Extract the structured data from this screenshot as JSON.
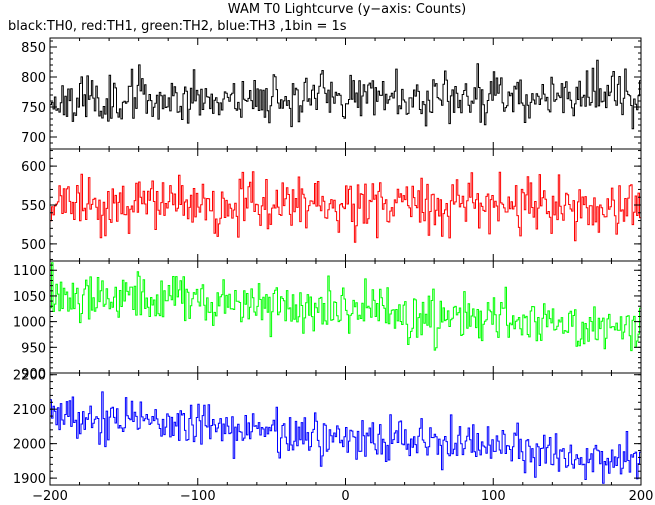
{
  "chart_data": {
    "type": "line",
    "title": "WAM T0 Lightcurve (y−axis: Counts)",
    "subtitle": "black:TH0, red:TH1, green:TH2, blue:TH3 ,1bin = 1s",
    "xlabel": "",
    "ylabel": "",
    "xlim": [
      -200,
      200
    ],
    "x_ticks": [
      -200,
      -100,
      0,
      100,
      200
    ],
    "x_tick_labels": [
      "−200",
      "−100",
      "0",
      "100",
      "200"
    ],
    "x_start": -200,
    "x_end": 200,
    "x_step": 1,
    "panels": [
      {
        "name": "TH0",
        "color": "#000000",
        "ylim": [
          680,
          865
        ],
        "y_ticks": [
          700,
          750,
          800,
          850
        ],
        "profile": [
          [
            -200,
            762
          ],
          [
            -100,
            765
          ],
          [
            0,
            768
          ],
          [
            100,
            768
          ],
          [
            200,
            772
          ]
        ],
        "noise": 27,
        "seed": 11
      },
      {
        "name": "TH1",
        "color": "#ff0000",
        "ylim": [
          478,
          622
        ],
        "y_ticks": [
          500,
          550,
          600
        ],
        "profile": [
          [
            -200,
            548
          ],
          [
            -100,
            550
          ],
          [
            0,
            552
          ],
          [
            100,
            548
          ],
          [
            200,
            545
          ]
        ],
        "noise": 23,
        "seed": 23
      },
      {
        "name": "TH2",
        "color": "#00ff00",
        "ylim": [
          900,
          1118
        ],
        "y_ticks": [
          900,
          950,
          1000,
          1050,
          1100
        ],
        "profile": [
          [
            -200,
            1060
          ],
          [
            -100,
            1040
          ],
          [
            0,
            1020
          ],
          [
            100,
            1005
          ],
          [
            200,
            990
          ]
        ],
        "noise": 32,
        "seed": 37
      },
      {
        "name": "TH3",
        "color": "#0000ff",
        "ylim": [
          1880,
          2205
        ],
        "y_ticks": [
          1900,
          2000,
          2100,
          2200
        ],
        "profile": [
          [
            -200,
            2090
          ],
          [
            -150,
            2065
          ],
          [
            -100,
            2050
          ],
          [
            0,
            2020
          ],
          [
            100,
            1990
          ],
          [
            200,
            1950
          ]
        ],
        "noise": 45,
        "seed": 53
      }
    ]
  }
}
